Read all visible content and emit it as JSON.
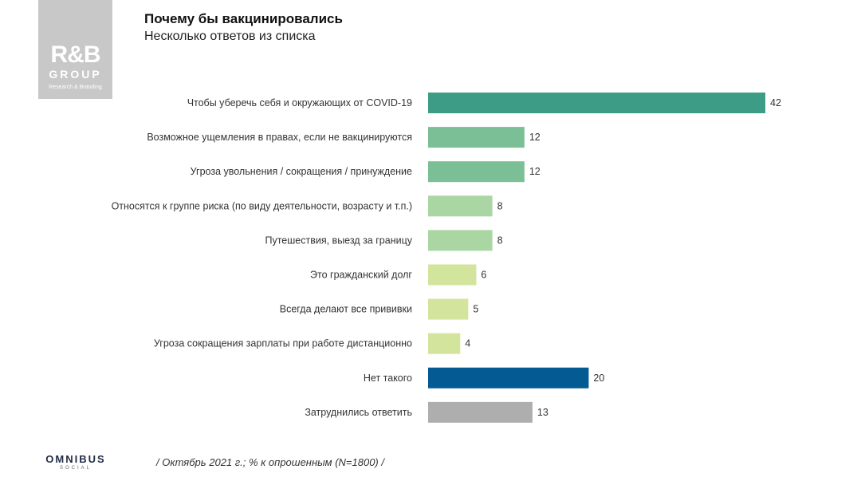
{
  "logo": {
    "mark": "R&B",
    "group": "GROUP",
    "tagline": "Research & Branding"
  },
  "header": {
    "title": "Почему бы вакцинировались",
    "subtitle": "Несколько ответов из списка"
  },
  "chart_data": {
    "type": "bar",
    "orientation": "horizontal",
    "title": "Почему бы вакцинировались",
    "subtitle": "Несколько ответов из списка",
    "xlabel": "",
    "ylabel": "",
    "xlim": [
      0,
      42
    ],
    "categories": [
      "Чтобы уберечь себя и окружающих от COVID-19",
      "Возможное ущемления в правах, если не вакцинируются",
      "Угроза увольнения  / сокращения  / принуждение",
      "Относятся к группе риска (по виду деятельности, возрасту и т.п.)",
      "Путешествия, выезд за границу",
      "Это гражданский долг",
      "Всегда делают все прививки",
      "Угроза сокращения зарплаты при работе дистанционно",
      "Нет такого",
      "Затруднились ответить"
    ],
    "values": [
      42,
      12,
      12,
      8,
      8,
      6,
      5,
      4,
      20,
      13
    ],
    "colors": [
      "#3d9c86",
      "#7bbf97",
      "#7bbf97",
      "#a9d6a2",
      "#a9d6a2",
      "#d3e59c",
      "#d3e59c",
      "#d3e59c",
      "#045a92",
      "#aeaeae"
    ]
  },
  "footer": {
    "brand": "OMNIBUS",
    "brand_sub": "SOCIAL",
    "note": "/ Октябрь 2021 г.; % к опрошенным (N=1800) /"
  }
}
